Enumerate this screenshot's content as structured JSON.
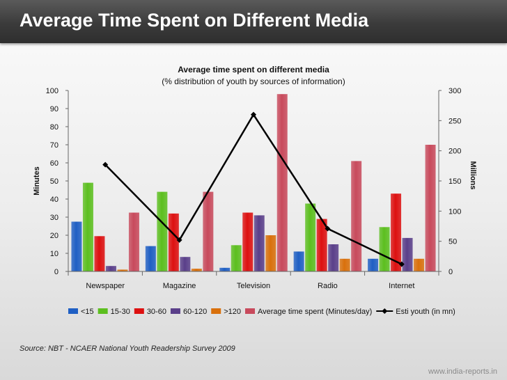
{
  "slide": {
    "title": "Average Time Spent on Different Media",
    "source": "Source: NBT - NCAER National Youth Readership Survey 2009",
    "footer": "www.india-reports.in"
  },
  "chart_data": {
    "type": "bar",
    "title": "Average time spent on different media",
    "subtitle": "(% distribution of youth by sources of information)",
    "categories": [
      "Newspaper",
      "Magazine",
      "Television",
      "Radio",
      "Internet"
    ],
    "ylabel": "Minutes",
    "ylim": [
      0,
      100
    ],
    "yticks": [
      0,
      10,
      20,
      30,
      40,
      50,
      60,
      70,
      80,
      90,
      100
    ],
    "y2label": "Millions",
    "y2lim": [
      0,
      300
    ],
    "y2ticks": [
      0,
      50,
      100,
      150,
      200,
      250,
      300
    ],
    "legend_position": "bottom",
    "series": [
      {
        "name": "<15",
        "type": "bar",
        "color": "#1f5fc4",
        "values": [
          27.5,
          14,
          2,
          11,
          7
        ]
      },
      {
        "name": "15-30",
        "type": "bar",
        "color": "#5cbf1f",
        "values": [
          49,
          44,
          14.5,
          37.5,
          24.5
        ]
      },
      {
        "name": "30-60",
        "type": "bar",
        "color": "#dd1010",
        "values": [
          19.5,
          32,
          32.5,
          29,
          43
        ]
      },
      {
        "name": "60-120",
        "type": "bar",
        "color": "#5a3f8a",
        "values": [
          3,
          8,
          31,
          15,
          18.5
        ]
      },
      {
        "name": ">120",
        "type": "bar",
        "color": "#d9700b",
        "values": [
          1,
          1.5,
          20,
          7,
          7
        ]
      },
      {
        "name": "Average time spent (Minutes/day)",
        "type": "bar",
        "color": "#c84a5c",
        "values": [
          32.5,
          44,
          98,
          61,
          70
        ]
      },
      {
        "name": "Esti youth (in mn)",
        "type": "line",
        "axis": "right",
        "color": "#000000",
        "values": [
          177,
          52,
          260,
          71,
          12
        ]
      }
    ]
  }
}
